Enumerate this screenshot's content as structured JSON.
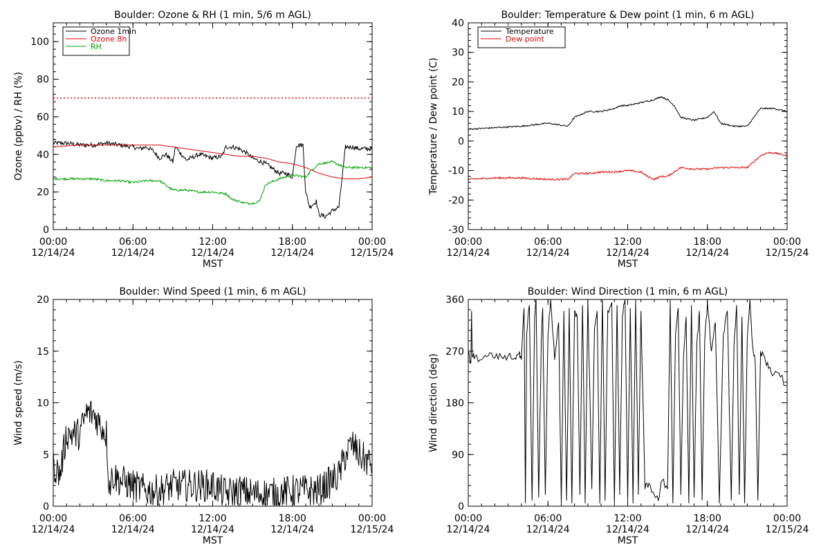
{
  "colors": {
    "black": "#000000",
    "red": "#e00000",
    "green": "#00a000",
    "background": "#ffffff"
  },
  "chart_data": [
    {
      "type": "line",
      "title": "Boulder: Ozone & RH (1 min, 5/6 m AGL)",
      "xlabel": "MST",
      "ylabel": "Ozone (ppbv) / RH (%)",
      "xticks": [
        {
          "time": "00:00",
          "date": "12/14/24"
        },
        {
          "time": "06:00",
          "date": "12/14/24"
        },
        {
          "time": "12:00",
          "date": "12/14/24"
        },
        {
          "time": "18:00",
          "date": "12/14/24"
        },
        {
          "time": "00:00",
          "date": "12/15/24"
        }
      ],
      "xlim_hours": [
        0,
        24
      ],
      "ylim": [
        0,
        110
      ],
      "yticks": [
        0,
        20,
        40,
        60,
        80,
        100
      ],
      "legend_position": "top-left",
      "legend": [
        {
          "label": "Ozone 1min",
          "color": "#000000"
        },
        {
          "label": "Ozone 8h",
          "color": "#e00000"
        },
        {
          "label": "RH",
          "color": "#00a000"
        }
      ],
      "reference_line": {
        "value": 70,
        "color": "#e00000",
        "style": "dotted"
      },
      "series": [
        {
          "name": "Ozone 1min",
          "color": "#000000",
          "noise": 1.2,
          "x": [
            0,
            1,
            2,
            3,
            4,
            5,
            6,
            6.5,
            7,
            7.5,
            8,
            8.5,
            9,
            9.2,
            10,
            11,
            12,
            12.7,
            13,
            13.5,
            14,
            14.5,
            15,
            16,
            17,
            17.5,
            18,
            18.3,
            18.8,
            19,
            19.3,
            19.8,
            20,
            20.5,
            21,
            21.5,
            22,
            22.5,
            23,
            24
          ],
          "y": [
            46,
            46,
            45,
            45,
            46,
            45,
            44,
            43,
            44,
            42,
            38,
            40,
            36,
            44,
            37,
            40,
            38,
            39,
            44,
            44,
            43,
            41,
            38,
            35,
            30,
            30,
            28,
            45,
            45,
            20,
            12,
            15,
            8,
            7,
            10,
            12,
            44,
            44,
            43,
            43
          ]
        },
        {
          "name": "Ozone 8h",
          "color": "#e00000",
          "noise": 0,
          "x": [
            0,
            2,
            4,
            6,
            8,
            10,
            12,
            14,
            15,
            16,
            17,
            18,
            19,
            20,
            21,
            22,
            23,
            24
          ],
          "y": [
            44,
            45,
            45,
            45,
            45,
            43,
            41,
            39,
            39,
            38,
            36,
            35,
            33,
            30,
            28,
            27,
            27,
            28
          ]
        },
        {
          "name": "RH",
          "color": "#00a000",
          "noise": 0.6,
          "x": [
            0,
            1,
            2,
            3,
            4,
            5,
            6,
            7,
            8,
            9,
            10,
            11,
            12,
            13,
            13.5,
            14,
            14.5,
            15,
            15.5,
            16,
            17,
            18,
            19,
            19.5,
            20,
            21,
            22,
            23,
            24
          ],
          "y": [
            27,
            27,
            27,
            27,
            26,
            26,
            25,
            26,
            26,
            21,
            21,
            20,
            20,
            19,
            16,
            15,
            14,
            14,
            15,
            24,
            27,
            29,
            28,
            32,
            35,
            36,
            33,
            33,
            33
          ]
        }
      ]
    },
    {
      "type": "line",
      "title": "Boulder: Temperature & Dew point (1 min, 6 m AGL)",
      "xlabel": "MST",
      "ylabel": "Temperature / Dew point (C)",
      "xticks": [
        {
          "time": "00:00",
          "date": "12/14/24"
        },
        {
          "time": "06:00",
          "date": "12/14/24"
        },
        {
          "time": "12:00",
          "date": "12/14/24"
        },
        {
          "time": "18:00",
          "date": "12/14/24"
        },
        {
          "time": "00:00",
          "date": "12/15/24"
        }
      ],
      "xlim_hours": [
        0,
        24
      ],
      "ylim": [
        -30,
        40
      ],
      "yticks": [
        -30,
        -20,
        -10,
        0,
        10,
        20,
        30,
        40
      ],
      "legend_position": "top-left",
      "legend": [
        {
          "label": "Temperature",
          "color": "#000000"
        },
        {
          "label": "Dew point",
          "color": "#e00000"
        }
      ],
      "series": [
        {
          "name": "Temperature",
          "color": "#000000",
          "noise": 0.25,
          "x": [
            0,
            2,
            4,
            6,
            7.5,
            8,
            8.5,
            9,
            10,
            11,
            11.5,
            12,
            13,
            14,
            14.5,
            15,
            15.5,
            16,
            17,
            18,
            18.5,
            19,
            20,
            21,
            21.5,
            22,
            23,
            24
          ],
          "y": [
            4,
            4.5,
            5,
            6,
            5,
            8,
            9,
            10,
            10,
            11,
            12,
            12,
            13,
            14,
            15,
            14,
            12,
            8,
            7,
            8,
            10,
            6,
            5,
            5,
            8,
            11,
            11,
            10
          ]
        },
        {
          "name": "Dew point",
          "color": "#e00000",
          "noise": 0.3,
          "x": [
            0,
            2,
            4,
            6,
            7.5,
            8,
            9,
            10,
            11,
            12,
            13,
            13.5,
            14,
            14.5,
            15,
            16,
            17,
            18,
            19,
            20,
            21,
            21.5,
            22,
            22.5,
            23,
            24
          ],
          "y": [
            -13,
            -12.5,
            -12.5,
            -13,
            -13,
            -11,
            -11,
            -10.5,
            -10.5,
            -10,
            -10.5,
            -12,
            -13,
            -12,
            -12,
            -9,
            -9.5,
            -9.5,
            -9,
            -9,
            -9,
            -7,
            -5,
            -4,
            -4,
            -5
          ]
        }
      ]
    },
    {
      "type": "line",
      "title": "Boulder: Wind Speed (1 min, 6 m AGL)",
      "xlabel": "MST",
      "ylabel": "Wind speed (m/s)",
      "xticks": [
        {
          "time": "00:00",
          "date": "12/14/24"
        },
        {
          "time": "06:00",
          "date": "12/14/24"
        },
        {
          "time": "12:00",
          "date": "12/14/24"
        },
        {
          "time": "18:00",
          "date": "12/14/24"
        },
        {
          "time": "00:00",
          "date": "12/15/24"
        }
      ],
      "xlim_hours": [
        0,
        24
      ],
      "ylim": [
        0,
        20
      ],
      "yticks": [
        0,
        5,
        10,
        15,
        20
      ],
      "series": [
        {
          "name": "",
          "color": "#000000",
          "noise": 1.6,
          "x": [
            0,
            0.5,
            1,
            1.5,
            2,
            2.5,
            3,
            3.5,
            4,
            4.2,
            4.5,
            5,
            6,
            7,
            8,
            9,
            10,
            11,
            12,
            13,
            14,
            15,
            16,
            17,
            18,
            19,
            20,
            21,
            21.5,
            22,
            22.5,
            23,
            24
          ],
          "y": [
            4,
            3,
            7,
            7,
            7,
            9,
            9,
            8,
            7,
            2,
            3,
            2.5,
            2,
            1.5,
            1.5,
            2,
            2,
            2,
            2,
            1.2,
            1.5,
            1.2,
            1.2,
            1.2,
            1.5,
            1.5,
            1.5,
            2.5,
            3,
            5,
            6,
            5,
            4
          ]
        }
      ]
    },
    {
      "type": "line",
      "title": "Boulder: Wind Direction (1 min, 6 m AGL)",
      "xlabel": "MST",
      "ylabel": "Wind direction (deg)",
      "xticks": [
        {
          "time": "00:00",
          "date": "12/14/24"
        },
        {
          "time": "06:00",
          "date": "12/14/24"
        },
        {
          "time": "12:00",
          "date": "12/14/24"
        },
        {
          "time": "18:00",
          "date": "12/14/24"
        },
        {
          "time": "00:00",
          "date": "12/15/24"
        }
      ],
      "xlim_hours": [
        0,
        24
      ],
      "ylim": [
        0,
        360
      ],
      "yticks": [
        0,
        90,
        180,
        270,
        360
      ],
      "series": [
        {
          "name": "",
          "color": "#000000",
          "noise": 0,
          "x": [
            0,
            0.2,
            0.25,
            0.3,
            0.5,
            1,
            1.5,
            2,
            2.5,
            3,
            3.5,
            3.8,
            4,
            4.2,
            4.3,
            4.4,
            4.6,
            4.8,
            5.0,
            5.1,
            5.3,
            5.5,
            5.6,
            5.8,
            6.0,
            6.2,
            6.5,
            6.8,
            7.0,
            7.2,
            7.4,
            7.6,
            7.8,
            8.0,
            8.2,
            8.4,
            8.6,
            8.8,
            9.0,
            9.3,
            9.5,
            9.7,
            9.9,
            10.1,
            10.3,
            10.5,
            10.8,
            11.0,
            11.2,
            11.4,
            11.6,
            11.8,
            12.0,
            12.2,
            12.4,
            12.6,
            12.8,
            13.0,
            13.3,
            13.6,
            14.0,
            14.3,
            14.6,
            15.0,
            15.2,
            15.4,
            15.6,
            15.8,
            16.0,
            16.2,
            16.4,
            16.6,
            16.8,
            17.0,
            17.2,
            17.4,
            17.6,
            17.8,
            18.0,
            18.3,
            18.6,
            18.9,
            19.2,
            19.5,
            19.8,
            20.0,
            20.2,
            20.4,
            20.6,
            20.8,
            21.0,
            21.2,
            21.4,
            21.6,
            21.8,
            22.0,
            22.3,
            22.6,
            23.0,
            23.5,
            24
          ],
          "y": [
            265,
            250,
            340,
            260,
            260,
            255,
            262,
            258,
            260,
            262,
            258,
            265,
            255,
            345,
            5,
            300,
            350,
            10,
            330,
            360,
            15,
            290,
            345,
            20,
            300,
            360,
            255,
            320,
            5,
            340,
            10,
            345,
            5,
            340,
            330,
            20,
            350,
            5,
            360,
            30,
            310,
            340,
            5,
            360,
            10,
            340,
            355,
            5,
            350,
            20,
            330,
            360,
            10,
            345,
            5,
            360,
            20,
            340,
            30,
            40,
            20,
            10,
            45,
            30,
            360,
            5,
            300,
            345,
            20,
            260,
            330,
            5,
            350,
            15,
            280,
            340,
            10,
            290,
            355,
            270,
            320,
            5,
            300,
            340,
            10,
            280,
            350,
            20,
            330,
            5,
            290,
            360,
            280,
            250,
            10,
            270,
            260,
            240,
            230,
            225,
            210
          ]
        }
      ]
    }
  ]
}
